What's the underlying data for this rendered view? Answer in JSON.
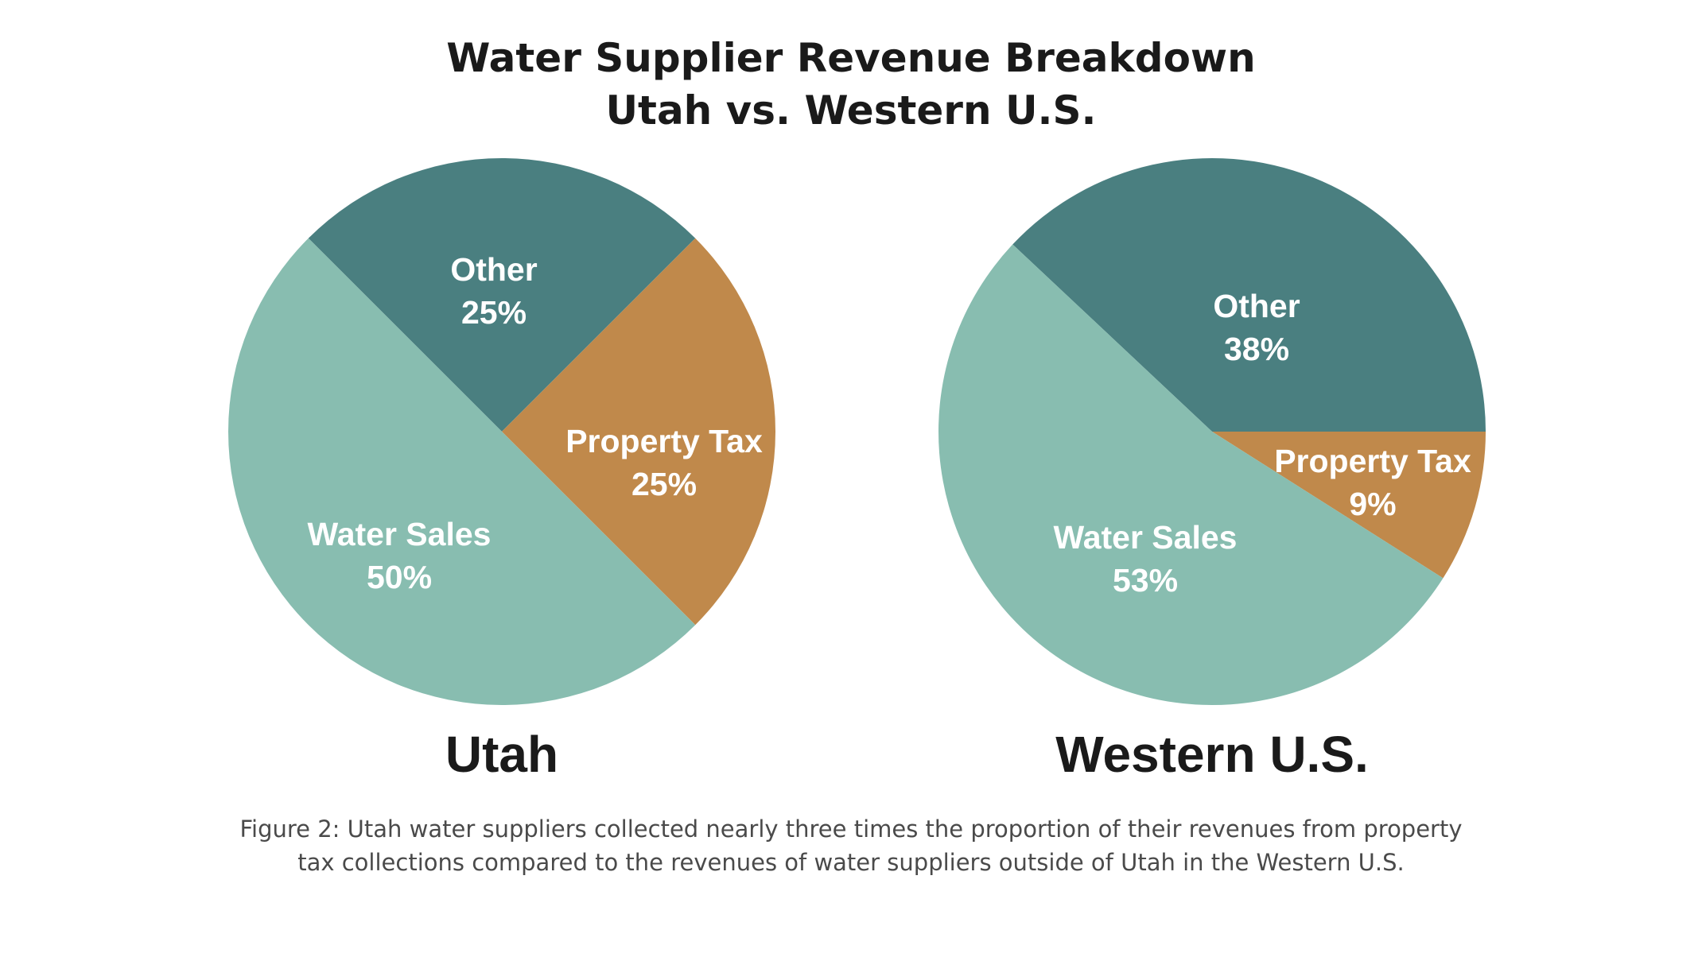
{
  "title": {
    "line1": "Water Supplier Revenue Breakdown",
    "line2": "Utah vs. Western U.S."
  },
  "caption": {
    "line1": "Figure 2: Utah water suppliers collected nearly three times the proportion of their revenues from property",
    "line2": "tax collections compared to the revenues of water suppliers outside of Utah in the Western U.S."
  },
  "chart_data": [
    {
      "type": "pie",
      "title": "Utah",
      "slices": [
        {
          "label": "Other",
          "value": 25,
          "value_label": "25%",
          "color": "#4a7f80"
        },
        {
          "label": "Property Tax",
          "value": 25,
          "value_label": "25%",
          "color": "#c0894b"
        },
        {
          "label": "Water Sales",
          "value": 50,
          "value_label": "50%",
          "color": "#88bdb0"
        }
      ]
    },
    {
      "type": "pie",
      "title": "Western U.S.",
      "slices": [
        {
          "label": "Other",
          "value": 38,
          "value_label": "38%",
          "color": "#4a7f80"
        },
        {
          "label": "Property Tax",
          "value": 9,
          "value_label": "9%",
          "color": "#c0894b"
        },
        {
          "label": "Water Sales",
          "value": 53,
          "value_label": "53%",
          "color": "#88bdb0"
        }
      ]
    }
  ]
}
